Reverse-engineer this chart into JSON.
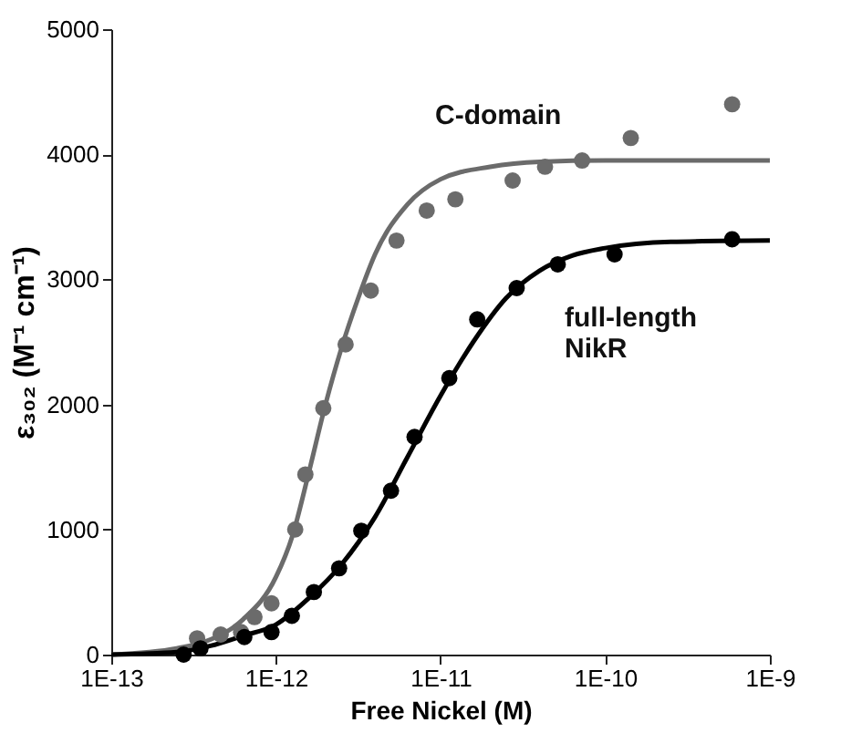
{
  "chart_data": {
    "type": "scatter",
    "xlabel": "Free Nickel (M)",
    "ylabel": "ε₃₀₂ (M⁻¹ cm⁻¹)",
    "log": "x",
    "xlim": [
      1e-13,
      1e-09
    ],
    "xticks": [
      {
        "value": 1e-13,
        "label": "1E-13"
      },
      {
        "value": 1e-12,
        "label": "1E-12"
      },
      {
        "value": 1e-11,
        "label": "1E-11"
      },
      {
        "value": 1e-10,
        "label": "1E-10"
      },
      {
        "value": 1e-09,
        "label": "1E-9"
      }
    ],
    "ylim": [
      0,
      5000
    ],
    "yticks": [
      0,
      1000,
      2000,
      3000,
      4000,
      5000
    ],
    "marker": "circle",
    "series": [
      {
        "type": "line",
        "marker": "none",
        "line_style": "solid",
        "color": "#6b6b6b",
        "x": [
          1e-13,
          2.5e-13,
          4e-13,
          6.3e-13,
          1e-12,
          1.26e-12,
          1.58e-12,
          2e-12,
          2.5e-12,
          3.16e-12,
          4e-12,
          6.3e-12,
          1e-11,
          2e-11,
          4e-11,
          1e-10,
          1e-09
        ],
        "values": [
          0,
          50,
          120,
          280,
          620,
          950,
          1450,
          2000,
          2450,
          2850,
          3200,
          3600,
          3800,
          3900,
          3940,
          3950,
          3950
        ]
      },
      {
        "type": "line",
        "marker": "none",
        "line_style": "solid",
        "color": "#000000",
        "x": [
          1e-13,
          2.5e-13,
          4e-13,
          6.3e-13,
          1e-12,
          1.58e-12,
          2.5e-12,
          4e-12,
          6.3e-12,
          1e-11,
          1.58e-11,
          2.5e-11,
          4e-11,
          6.3e-11,
          1e-10,
          2.5e-10,
          1e-09
        ],
        "values": [
          0,
          20,
          70,
          150,
          240,
          450,
          720,
          1100,
          1580,
          2070,
          2500,
          2850,
          3070,
          3190,
          3250,
          3300,
          3310
        ]
      },
      {
        "color": "#6b6b6b",
        "x": [
          3.32e-13,
          4.62e-13,
          6.14e-13,
          7.41e-13,
          9.4e-13,
          1.31e-12,
          1.51e-12,
          1.94e-12,
          2.65e-12,
          3.77e-12,
          5.4e-12,
          8.24e-12,
          1.23e-11,
          2.74e-11,
          4.31e-11,
          7.24e-11,
          1.43e-10,
          5.9e-10
        ],
        "values": [
          130,
          160,
          180,
          300,
          410,
          1000,
          1440,
          1970,
          2480,
          2910,
          3310,
          3550,
          3640,
          3790,
          3900,
          3950,
          4130,
          4400
        ]
      },
      {
        "color": "#000000",
        "x": [
          2.75e-13,
          3.48e-13,
          6.43e-13,
          9.4e-13,
          1.25e-12,
          1.7e-12,
          2.42e-12,
          3.3e-12,
          5e-12,
          6.95e-12,
          1.13e-11,
          1.67e-11,
          2.9e-11,
          5.15e-11,
          1.14e-10,
          5.9e-10
        ],
        "values": [
          0,
          50,
          140,
          180,
          310,
          500,
          690,
          990,
          1310,
          1740,
          2210,
          2680,
          2930,
          3120,
          3200,
          3320
        ]
      }
    ],
    "annotations": [
      "C-domain",
      "full-length\nNikR"
    ]
  }
}
